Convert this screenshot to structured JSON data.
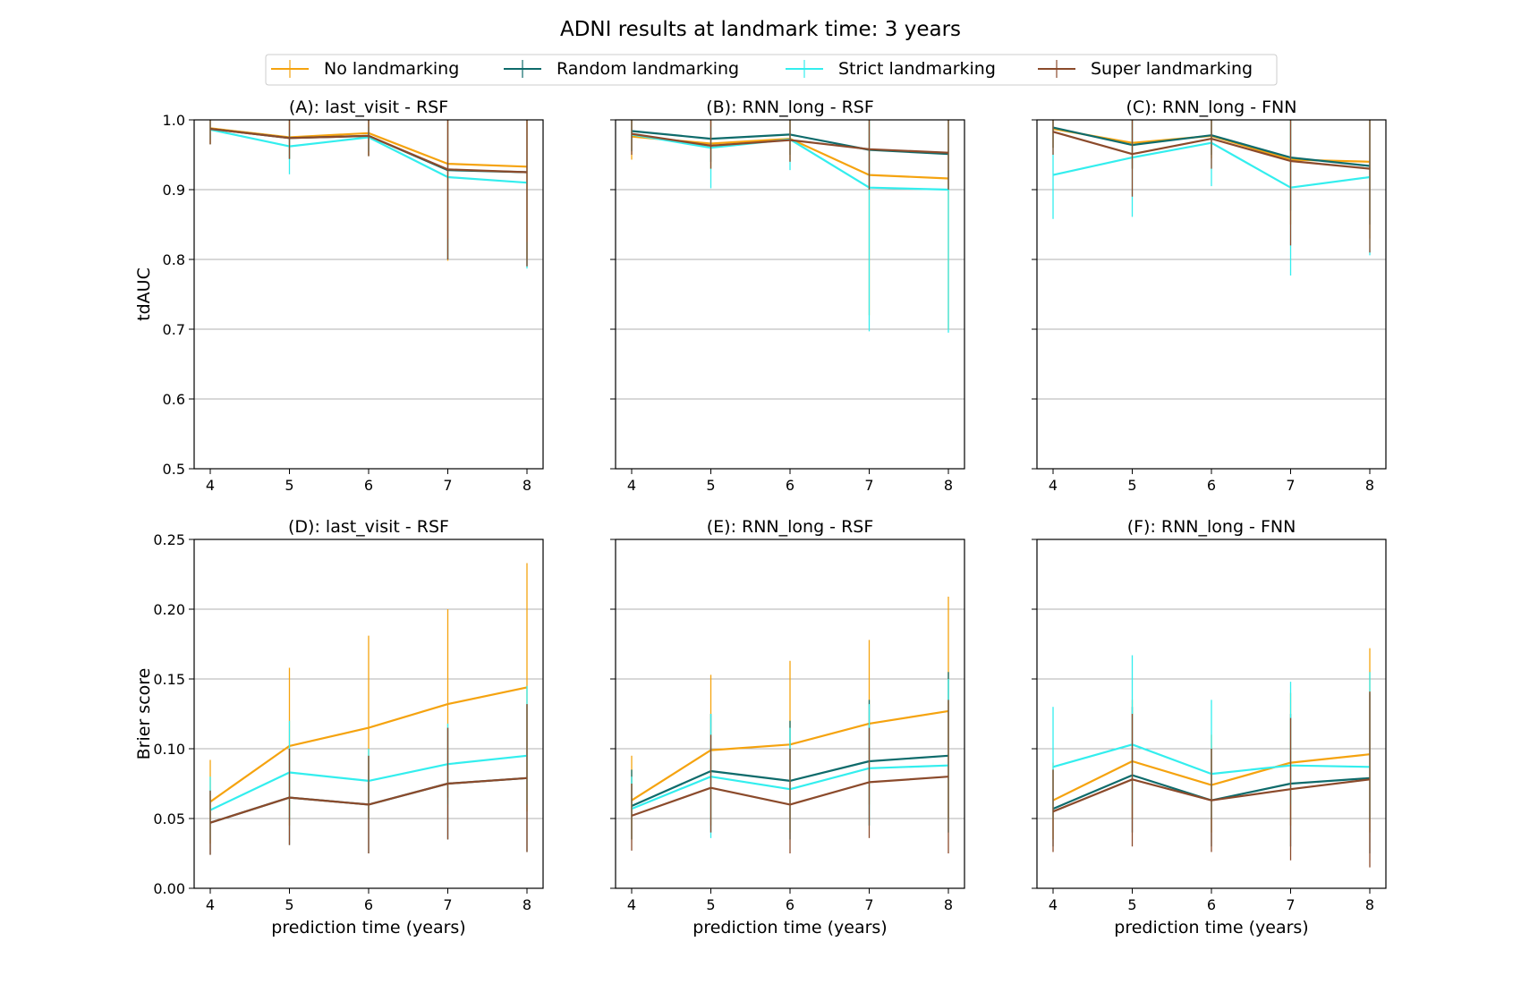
{
  "figure": {
    "suptitle": "ADNI results at landmark time: 3 years"
  },
  "legend": {
    "placement": "top-center",
    "entries": [
      {
        "name": "No landmarking",
        "color": "#f5a30f"
      },
      {
        "name": "Random landmarking",
        "color": "#0e6b6b"
      },
      {
        "name": "Strict landmarking",
        "color": "#33eeee"
      },
      {
        "name": "Super landmarking",
        "color": "#8b4a2b"
      }
    ]
  },
  "chart_data": [
    {
      "type": "line",
      "title": "(A): last_visit - RSF",
      "xlabel": "",
      "ylabel": "tdAUC",
      "x": [
        4,
        5,
        6,
        7,
        8
      ],
      "ylim": [
        0.5,
        1.0
      ],
      "yticks": [
        "0.5",
        "0.6",
        "0.7",
        "0.8",
        "0.9",
        "1.0"
      ],
      "show_yticklabels": true,
      "grid": "y",
      "series": [
        {
          "name": "No landmarking",
          "values": [
            0.988,
            0.975,
            0.981,
            0.937,
            0.933
          ],
          "err_lo": [
            0.965,
            0.944,
            0.948,
            0.798,
            0.8
          ],
          "err_hi": [
            1.0,
            1.0,
            1.0,
            1.0,
            1.0
          ]
        },
        {
          "name": "Random landmarking",
          "values": [
            0.987,
            0.974,
            0.977,
            0.928,
            0.925
          ],
          "err_lo": [
            0.965,
            0.944,
            0.948,
            0.8,
            0.79
          ],
          "err_hi": [
            1.0,
            1.0,
            1.0,
            1.0,
            1.0
          ]
        },
        {
          "name": "Strict landmarking",
          "values": [
            0.986,
            0.962,
            0.975,
            0.918,
            0.91
          ],
          "err_lo": [
            0.972,
            0.922,
            0.955,
            0.8,
            0.787
          ],
          "err_hi": [
            1.0,
            0.985,
            0.99,
            0.83,
            0.825
          ]
        },
        {
          "name": "Super landmarking",
          "values": [
            0.987,
            0.974,
            0.977,
            0.929,
            0.925
          ],
          "err_lo": [
            0.965,
            0.944,
            0.948,
            0.8,
            0.79
          ],
          "err_hi": [
            1.0,
            1.0,
            1.0,
            1.0,
            1.0
          ]
        }
      ]
    },
    {
      "type": "line",
      "title": "(B): RNN_long - RSF",
      "xlabel": "",
      "ylabel": "",
      "x": [
        4,
        5,
        6,
        7,
        8
      ],
      "ylim": [
        0.5,
        1.0
      ],
      "yticks": [
        "0.5",
        "0.6",
        "0.7",
        "0.8",
        "0.9",
        "1.0"
      ],
      "show_yticklabels": false,
      "grid": "y",
      "series": [
        {
          "name": "No landmarking",
          "values": [
            0.976,
            0.966,
            0.973,
            0.921,
            0.916
          ],
          "err_lo": [
            0.943,
            0.93,
            0.94,
            0.72,
            0.7
          ],
          "err_hi": [
            1.0,
            1.0,
            1.0,
            1.0,
            1.0
          ]
        },
        {
          "name": "Random landmarking",
          "values": [
            0.984,
            0.973,
            0.979,
            0.957,
            0.951
          ],
          "err_lo": [
            0.955,
            0.94,
            0.95,
            0.9,
            0.9
          ],
          "err_hi": [
            1.0,
            1.0,
            1.0,
            1.0,
            1.0
          ]
        },
        {
          "name": "Strict landmarking",
          "values": [
            0.979,
            0.96,
            0.972,
            0.903,
            0.9
          ],
          "err_lo": [
            0.955,
            0.902,
            0.928,
            0.697,
            0.695
          ],
          "err_hi": [
            1.0,
            0.99,
            1.0,
            1.0,
            1.0
          ]
        },
        {
          "name": "Super landmarking",
          "values": [
            0.98,
            0.963,
            0.971,
            0.958,
            0.953
          ],
          "err_lo": [
            0.95,
            0.93,
            0.94,
            0.9,
            0.9
          ],
          "err_hi": [
            1.0,
            1.0,
            1.0,
            1.0,
            1.0
          ]
        }
      ]
    },
    {
      "type": "line",
      "title": "(C): RNN_long - FNN",
      "xlabel": "",
      "ylabel": "",
      "x": [
        4,
        5,
        6,
        7,
        8
      ],
      "ylim": [
        0.5,
        1.0
      ],
      "yticks": [
        "0.5",
        "0.6",
        "0.7",
        "0.8",
        "0.9",
        "1.0"
      ],
      "show_yticklabels": false,
      "grid": "y",
      "series": [
        {
          "name": "No landmarking",
          "values": [
            0.987,
            0.967,
            0.977,
            0.943,
            0.94
          ],
          "err_lo": [
            0.96,
            0.93,
            0.945,
            0.85,
            0.83
          ],
          "err_hi": [
            1.0,
            1.0,
            1.0,
            1.0,
            1.0
          ]
        },
        {
          "name": "Random landmarking",
          "values": [
            0.989,
            0.964,
            0.978,
            0.946,
            0.934
          ],
          "err_lo": [
            0.96,
            0.93,
            0.95,
            0.87,
            0.85
          ],
          "err_hi": [
            1.0,
            1.0,
            1.0,
            1.0,
            1.0
          ]
        },
        {
          "name": "Strict landmarking",
          "values": [
            0.921,
            0.946,
            0.967,
            0.903,
            0.918
          ],
          "err_lo": [
            0.858,
            0.861,
            0.905,
            0.777,
            0.806
          ],
          "err_hi": [
            1.0,
            1.0,
            1.0,
            1.0,
            1.0
          ]
        },
        {
          "name": "Super landmarking",
          "values": [
            0.983,
            0.951,
            0.973,
            0.941,
            0.93
          ],
          "err_lo": [
            0.95,
            0.89,
            0.93,
            0.82,
            0.81
          ],
          "err_hi": [
            1.0,
            1.0,
            1.0,
            1.0,
            1.0
          ]
        }
      ]
    },
    {
      "type": "line",
      "title": "(D): last_visit - RSF",
      "xlabel": "prediction time (years)",
      "ylabel": "Brier score",
      "x": [
        4,
        5,
        6,
        7,
        8
      ],
      "ylim": [
        0.0,
        0.25
      ],
      "yticks": [
        "0.00",
        "0.05",
        "0.10",
        "0.15",
        "0.20",
        "0.25"
      ],
      "show_yticklabels": true,
      "grid": "y",
      "series": [
        {
          "name": "No landmarking",
          "values": [
            0.062,
            0.102,
            0.115,
            0.132,
            0.144
          ],
          "err_lo": [
            0.032,
            0.045,
            0.05,
            0.065,
            0.055
          ],
          "err_hi": [
            0.092,
            0.158,
            0.181,
            0.2,
            0.233
          ]
        },
        {
          "name": "Random landmarking",
          "values": [
            0.047,
            0.065,
            0.06,
            0.075,
            0.079
          ],
          "err_lo": [
            0.024,
            0.031,
            0.025,
            0.035,
            0.026
          ],
          "err_hi": [
            0.07,
            0.1,
            0.095,
            0.115,
            0.132
          ]
        },
        {
          "name": "Strict landmarking",
          "values": [
            0.056,
            0.083,
            0.077,
            0.089,
            0.095
          ],
          "err_lo": [
            0.035,
            0.05,
            0.05,
            0.06,
            0.06
          ],
          "err_hi": [
            0.08,
            0.12,
            0.1,
            0.118,
            0.145
          ]
        },
        {
          "name": "Super landmarking",
          "values": [
            0.047,
            0.065,
            0.06,
            0.075,
            0.079
          ],
          "err_lo": [
            0.024,
            0.031,
            0.025,
            0.035,
            0.026
          ],
          "err_hi": [
            0.07,
            0.1,
            0.095,
            0.115,
            0.132
          ]
        }
      ]
    },
    {
      "type": "line",
      "title": "(E): RNN_long - RSF",
      "xlabel": "prediction time (years)",
      "ylabel": "",
      "x": [
        4,
        5,
        6,
        7,
        8
      ],
      "ylim": [
        0.0,
        0.25
      ],
      "yticks": [
        "0.00",
        "0.05",
        "0.10",
        "0.15",
        "0.20",
        "0.25"
      ],
      "show_yticklabels": false,
      "grid": "y",
      "series": [
        {
          "name": "No landmarking",
          "values": [
            0.063,
            0.099,
            0.103,
            0.118,
            0.127
          ],
          "err_lo": [
            0.035,
            0.045,
            0.04,
            0.06,
            0.05
          ],
          "err_hi": [
            0.095,
            0.153,
            0.163,
            0.178,
            0.209
          ]
        },
        {
          "name": "Random landmarking",
          "values": [
            0.059,
            0.084,
            0.077,
            0.091,
            0.095
          ],
          "err_lo": [
            0.035,
            0.04,
            0.035,
            0.045,
            0.04
          ],
          "err_hi": [
            0.085,
            0.125,
            0.12,
            0.135,
            0.155
          ]
        },
        {
          "name": "Strict landmarking",
          "values": [
            0.057,
            0.08,
            0.071,
            0.086,
            0.088
          ],
          "err_lo": [
            0.035,
            0.036,
            0.035,
            0.045,
            0.04
          ],
          "err_hi": [
            0.08,
            0.125,
            0.115,
            0.132,
            0.15
          ]
        },
        {
          "name": "Super landmarking",
          "values": [
            0.052,
            0.072,
            0.06,
            0.076,
            0.08
          ],
          "err_lo": [
            0.027,
            0.04,
            0.025,
            0.036,
            0.025
          ],
          "err_hi": [
            0.075,
            0.11,
            0.1,
            0.115,
            0.135
          ]
        }
      ]
    },
    {
      "type": "line",
      "title": "(F): RNN_long - FNN",
      "xlabel": "prediction time (years)",
      "ylabel": "",
      "x": [
        4,
        5,
        6,
        7,
        8
      ],
      "ylim": [
        0.0,
        0.25
      ],
      "yticks": [
        "0.00",
        "0.05",
        "0.10",
        "0.15",
        "0.20",
        "0.25"
      ],
      "show_yticklabels": false,
      "grid": "y",
      "series": [
        {
          "name": "No landmarking",
          "values": [
            0.063,
            0.091,
            0.074,
            0.09,
            0.096
          ],
          "err_lo": [
            0.035,
            0.05,
            0.04,
            0.045,
            0.04
          ],
          "err_hi": [
            0.09,
            0.135,
            0.11,
            0.14,
            0.172
          ]
        },
        {
          "name": "Random landmarking",
          "values": [
            0.057,
            0.081,
            0.063,
            0.075,
            0.079
          ],
          "err_lo": [
            0.03,
            0.04,
            0.03,
            0.03,
            0.025
          ],
          "err_hi": [
            0.085,
            0.13,
            0.1,
            0.125,
            0.14
          ]
        },
        {
          "name": "Strict landmarking",
          "values": [
            0.087,
            0.103,
            0.082,
            0.088,
            0.087
          ],
          "err_lo": [
            0.05,
            0.06,
            0.05,
            0.06,
            0.05
          ],
          "err_hi": [
            0.13,
            0.167,
            0.135,
            0.148,
            0.155
          ]
        },
        {
          "name": "Super landmarking",
          "values": [
            0.055,
            0.078,
            0.063,
            0.071,
            0.078
          ],
          "err_lo": [
            0.026,
            0.03,
            0.026,
            0.02,
            0.015
          ],
          "err_hi": [
            0.085,
            0.125,
            0.1,
            0.122,
            0.141
          ]
        }
      ]
    }
  ]
}
